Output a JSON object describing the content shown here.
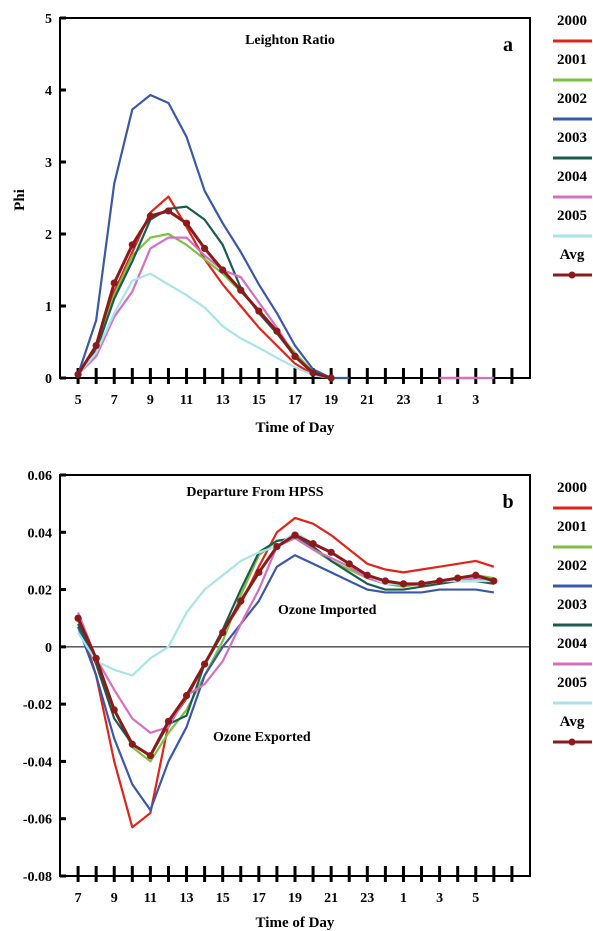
{
  "colors": {
    "2000": "#e2231a",
    "2001": "#7cc242",
    "2002": "#3a58a8",
    "2003": "#1c5b52",
    "2004": "#d66fbf",
    "2005": "#a8e4ea",
    "Avg": "#8b1a1a"
  },
  "chart_data": [
    {
      "type": "line",
      "title": "Leighton Ratio",
      "panel": "a",
      "xlabel": "Time of Day",
      "ylabel": "Phi",
      "ylim": [
        0,
        5
      ],
      "yticks": [
        "0",
        "1",
        "2",
        "3",
        "4",
        "5"
      ],
      "xtick_labels": [
        "5",
        "7",
        "9",
        "11",
        "13",
        "15",
        "17",
        "19",
        "21",
        "23",
        "1",
        "3"
      ],
      "legend_position": "right",
      "x": [
        5,
        6,
        7,
        8,
        9,
        10,
        11,
        12,
        13,
        14,
        15,
        16,
        17,
        18,
        19,
        20,
        21,
        22,
        23,
        24,
        25,
        26,
        27,
        28
      ],
      "series": [
        {
          "name": "2000",
          "color_key": "2000",
          "values": [
            0.05,
            0.35,
            1.2,
            1.75,
            2.3,
            2.52,
            2.1,
            1.65,
            1.3,
            1.0,
            0.7,
            0.45,
            0.2,
            0.05,
            0,
            null,
            null,
            null,
            null,
            null,
            0,
            0,
            0,
            null
          ]
        },
        {
          "name": "2001",
          "color_key": "2001",
          "values": [
            0.05,
            0.4,
            1.15,
            1.7,
            1.95,
            2.0,
            1.85,
            1.65,
            1.45,
            1.2,
            0.95,
            0.65,
            0.35,
            0.08,
            0,
            null,
            null,
            null,
            null,
            null,
            null,
            null,
            null,
            null
          ]
        },
        {
          "name": "2002",
          "color_key": "2002",
          "values": [
            0.05,
            0.8,
            2.7,
            3.73,
            3.93,
            3.82,
            3.35,
            2.6,
            2.15,
            1.75,
            1.3,
            0.9,
            0.45,
            0.12,
            0,
            0,
            null,
            null,
            null,
            null,
            null,
            null,
            null,
            null
          ]
        },
        {
          "name": "2003",
          "color_key": "2003",
          "values": [
            0.05,
            0.38,
            1.1,
            1.62,
            2.2,
            2.35,
            2.38,
            2.2,
            1.85,
            1.25,
            0.9,
            0.62,
            0.3,
            0.08,
            0,
            null,
            null,
            null,
            null,
            null,
            null,
            null,
            null,
            null
          ]
        },
        {
          "name": "2004",
          "color_key": "2004",
          "values": [
            0.05,
            0.3,
            0.85,
            1.2,
            1.8,
            1.95,
            1.95,
            1.7,
            1.5,
            1.4,
            1.05,
            0.7,
            0.3,
            0.05,
            0,
            null,
            null,
            null,
            null,
            null,
            0,
            0,
            0,
            0
          ]
        },
        {
          "name": "2005",
          "color_key": "2005",
          "values": [
            0.05,
            0.35,
            0.9,
            1.35,
            1.45,
            1.3,
            1.15,
            0.98,
            0.72,
            0.55,
            0.42,
            0.28,
            0.15,
            0.04,
            0,
            null,
            null,
            null,
            null,
            null,
            null,
            null,
            null,
            null
          ]
        },
        {
          "name": "Avg",
          "color_key": "Avg",
          "markers": true,
          "values": [
            0.05,
            0.45,
            1.32,
            1.85,
            2.25,
            2.32,
            2.15,
            1.8,
            1.5,
            1.22,
            0.93,
            0.65,
            0.3,
            0.07,
            0.0,
            null,
            null,
            null,
            null,
            null,
            null,
            null,
            null,
            null
          ]
        }
      ]
    },
    {
      "type": "line",
      "title": "Departure From HPSS",
      "panel": "b",
      "xlabel": "Time of Day",
      "ylabel": "",
      "ylim": [
        -0.08,
        0.06
      ],
      "yticks": [
        "-0.08",
        "-0.06",
        "-0.04",
        "-0.02",
        "0",
        "0.02",
        "0.04",
        "0.06"
      ],
      "xtick_labels": [
        "7",
        "9",
        "11",
        "13",
        "15",
        "17",
        "19",
        "21",
        "23",
        "1",
        "3",
        "5"
      ],
      "annotations": [
        "Ozone Imported",
        "Ozone Exported"
      ],
      "legend_position": "right",
      "x": [
        7,
        8,
        9,
        10,
        11,
        12,
        13,
        14,
        15,
        16,
        17,
        18,
        19,
        20,
        21,
        22,
        23,
        24,
        25,
        26,
        27,
        28,
        29,
        30
      ],
      "series": [
        {
          "name": "2000",
          "color_key": "2000",
          "values": [
            0.01,
            -0.01,
            -0.04,
            -0.063,
            -0.058,
            -0.027,
            -0.018,
            -0.006,
            0.005,
            0.015,
            0.028,
            0.04,
            0.045,
            0.043,
            0.039,
            0.034,
            0.029,
            0.027,
            0.026,
            0.027,
            0.028,
            0.029,
            0.03,
            0.028
          ]
        },
        {
          "name": "2001",
          "color_key": "2001",
          "values": [
            0.009,
            -0.005,
            -0.022,
            -0.035,
            -0.04,
            -0.03,
            -0.022,
            -0.01,
            0.002,
            0.018,
            0.032,
            0.037,
            0.038,
            0.034,
            0.03,
            0.027,
            0.024,
            0.022,
            0.021,
            0.022,
            0.023,
            0.024,
            0.025,
            0.024
          ]
        },
        {
          "name": "2002",
          "color_key": "2002",
          "values": [
            0.007,
            -0.01,
            -0.032,
            -0.048,
            -0.057,
            -0.04,
            -0.028,
            -0.01,
            0.0,
            0.008,
            0.016,
            0.028,
            0.032,
            0.029,
            0.026,
            0.023,
            0.02,
            0.019,
            0.019,
            0.019,
            0.02,
            0.02,
            0.02,
            0.019
          ]
        },
        {
          "name": "2003",
          "color_key": "2003",
          "values": [
            0.008,
            -0.006,
            -0.025,
            -0.034,
            -0.038,
            -0.027,
            -0.024,
            -0.006,
            0.006,
            0.02,
            0.033,
            0.037,
            0.038,
            0.035,
            0.03,
            0.026,
            0.022,
            0.02,
            0.02,
            0.021,
            0.022,
            0.023,
            0.023,
            0.022
          ]
        },
        {
          "name": "2004",
          "color_key": "2004",
          "values": [
            0.012,
            -0.004,
            -0.015,
            -0.025,
            -0.03,
            -0.028,
            -0.017,
            -0.013,
            -0.005,
            0.008,
            0.02,
            0.035,
            0.038,
            0.034,
            0.031,
            0.028,
            0.024,
            0.022,
            0.022,
            0.022,
            0.023,
            0.023,
            0.024,
            0.023
          ]
        },
        {
          "name": "2005",
          "color_key": "2005",
          "values": [
            0.005,
            -0.005,
            -0.008,
            -0.01,
            -0.004,
            0.0,
            0.012,
            0.02,
            0.025,
            0.03,
            0.033,
            0.035,
            0.04,
            0.036,
            0.033,
            0.029,
            0.025,
            0.022,
            0.022,
            0.022,
            0.023,
            0.023,
            0.023,
            0.023
          ]
        },
        {
          "name": "Avg",
          "color_key": "Avg",
          "markers": true,
          "values": [
            0.01,
            -0.004,
            -0.022,
            -0.034,
            -0.038,
            -0.026,
            -0.017,
            -0.006,
            0.005,
            0.016,
            0.026,
            0.035,
            0.039,
            0.036,
            0.033,
            0.029,
            0.025,
            0.023,
            0.022,
            0.022,
            0.023,
            0.024,
            0.025,
            0.023
          ]
        }
      ]
    }
  ],
  "legend": {
    "entries": [
      "2000",
      "2001",
      "2002",
      "2003",
      "2004",
      "2005",
      "Avg"
    ]
  }
}
